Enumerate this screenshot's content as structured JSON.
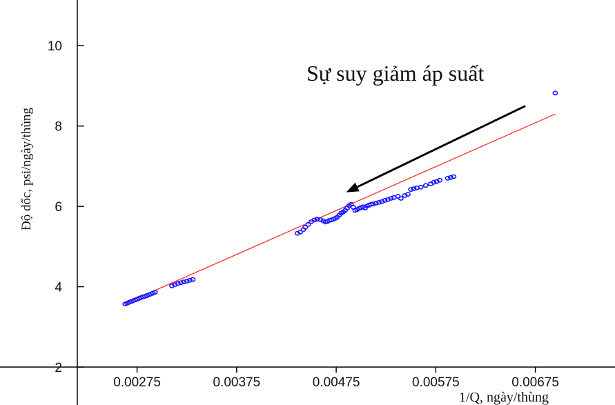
{
  "chart_data": {
    "type": "scatter",
    "title": "",
    "xlabel": "1/Q, ngày/thùng",
    "ylabel": "Độ dốc, psi/ngày/thùng",
    "xlim": [
      0.00215,
      0.00755
    ],
    "ylim": [
      2,
      11
    ],
    "xticks": [
      "0.00275",
      "0.00375",
      "0.00475",
      "0.00575",
      "0.00675"
    ],
    "yticks": [
      "2",
      "4",
      "6",
      "8",
      "10"
    ],
    "grid": false,
    "annotation": {
      "text": "Sự suy giảm áp suất",
      "arrow_from": [
        0.00665,
        8.5
      ],
      "arrow_to": [
        0.00485,
        6.35
      ]
    },
    "colors": {
      "points": "#1a1aff",
      "fit_line": "#ff2a2a",
      "axes": "#000000"
    },
    "fit_line": {
      "x": [
        0.00263,
        0.00695
      ],
      "y": [
        3.58,
        8.3
      ]
    },
    "points": [
      [
        0.00263,
        3.57
      ],
      [
        0.00265,
        3.59
      ],
      [
        0.00267,
        3.61
      ],
      [
        0.00269,
        3.63
      ],
      [
        0.00271,
        3.65
      ],
      [
        0.00273,
        3.67
      ],
      [
        0.00275,
        3.69
      ],
      [
        0.00277,
        3.71
      ],
      [
        0.00279,
        3.73
      ],
      [
        0.00281,
        3.75
      ],
      [
        0.00283,
        3.76
      ],
      [
        0.00285,
        3.78
      ],
      [
        0.00287,
        3.8
      ],
      [
        0.00289,
        3.82
      ],
      [
        0.00291,
        3.84
      ],
      [
        0.00293,
        3.86
      ],
      [
        0.0031,
        4.02
      ],
      [
        0.00313,
        4.05
      ],
      [
        0.00316,
        4.08
      ],
      [
        0.00319,
        4.1
      ],
      [
        0.00322,
        4.12
      ],
      [
        0.00325,
        4.14
      ],
      [
        0.00328,
        4.16
      ],
      [
        0.00331,
        4.18
      ],
      [
        0.00436,
        5.33
      ],
      [
        0.00439,
        5.36
      ],
      [
        0.00442,
        5.42
      ],
      [
        0.00444,
        5.48
      ],
      [
        0.00447,
        5.55
      ],
      [
        0.0045,
        5.62
      ],
      [
        0.00453,
        5.66
      ],
      [
        0.00456,
        5.68
      ],
      [
        0.00459,
        5.67
      ],
      [
        0.00462,
        5.64
      ],
      [
        0.00464,
        5.61
      ],
      [
        0.00466,
        5.62
      ],
      [
        0.00468,
        5.65
      ],
      [
        0.0047,
        5.66
      ],
      [
        0.00472,
        5.68
      ],
      [
        0.00474,
        5.7
      ],
      [
        0.00476,
        5.73
      ],
      [
        0.00478,
        5.78
      ],
      [
        0.0048,
        5.83
      ],
      [
        0.00482,
        5.86
      ],
      [
        0.00484,
        5.9
      ],
      [
        0.00486,
        5.96
      ],
      [
        0.00488,
        6.02
      ],
      [
        0.0049,
        6.05
      ],
      [
        0.00492,
        5.98
      ],
      [
        0.00494,
        5.9
      ],
      [
        0.00496,
        5.92
      ],
      [
        0.00498,
        5.95
      ],
      [
        0.005,
        5.97
      ],
      [
        0.00502,
        5.99
      ],
      [
        0.00504,
        5.96
      ],
      [
        0.00506,
        6.01
      ],
      [
        0.00508,
        6.03
      ],
      [
        0.0051,
        6.05
      ],
      [
        0.00512,
        6.06
      ],
      [
        0.00515,
        6.08
      ],
      [
        0.00518,
        6.1
      ],
      [
        0.00521,
        6.12
      ],
      [
        0.00524,
        6.15
      ],
      [
        0.00527,
        6.17
      ],
      [
        0.0053,
        6.2
      ],
      [
        0.00533,
        6.22
      ],
      [
        0.00537,
        6.25
      ],
      [
        0.0054,
        6.2
      ],
      [
        0.00544,
        6.27
      ],
      [
        0.00547,
        6.3
      ],
      [
        0.0055,
        6.42
      ],
      [
        0.00553,
        6.44
      ],
      [
        0.00556,
        6.46
      ],
      [
        0.0056,
        6.48
      ],
      [
        0.00565,
        6.52
      ],
      [
        0.0057,
        6.56
      ],
      [
        0.00573,
        6.6
      ],
      [
        0.00576,
        6.62
      ],
      [
        0.00579,
        6.65
      ],
      [
        0.00587,
        6.7
      ],
      [
        0.0059,
        6.72
      ],
      [
        0.00593,
        6.74
      ],
      [
        0.00695,
        8.82
      ]
    ]
  }
}
